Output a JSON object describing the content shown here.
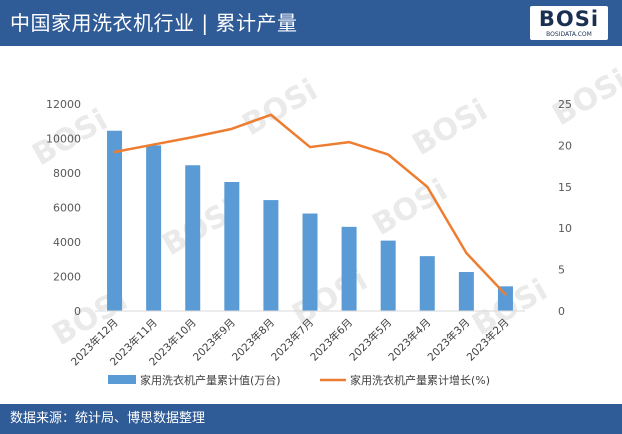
{
  "header": {
    "title": "中国家用洗衣机行业 | 累计产量",
    "logo_main": "BOSi",
    "logo_sub": "BOSIDATA.COM"
  },
  "footer": {
    "source": "数据来源：统计局、博思数据整理"
  },
  "colors": {
    "header_bg": "#2f5b97",
    "bar": "#5b9bd5",
    "line": "#ed7d31"
  },
  "chart_data": {
    "type": "bar",
    "categories": [
      "2023年12月",
      "2023年11月",
      "2023年10月",
      "2023年9月",
      "2023年8月",
      "2023年7月",
      "2023年6月",
      "2023年5月",
      "2023年4月",
      "2023年3月",
      "2023年2月"
    ],
    "series": [
      {
        "name": "家用洗衣机产量累计值(万台)",
        "type": "bar",
        "axis": "left",
        "values": [
          10450,
          9600,
          8450,
          7480,
          6430,
          5650,
          4880,
          4080,
          3180,
          2260,
          1430
        ]
      },
      {
        "name": "家用洗衣机产量累计增长(%)",
        "type": "line",
        "axis": "right",
        "values": [
          19.2,
          20.1,
          21.0,
          22.0,
          23.7,
          19.8,
          20.4,
          18.9,
          15.0,
          7.0,
          2.0
        ]
      }
    ],
    "y_left": {
      "min": 0,
      "max": 12000,
      "ticks": [
        0,
        2000,
        4000,
        6000,
        8000,
        10000,
        12000
      ]
    },
    "y_right": {
      "min": 0,
      "max": 25,
      "ticks": [
        0,
        5,
        10,
        15,
        20,
        25
      ]
    },
    "grid": false,
    "legend_position": "bottom"
  }
}
